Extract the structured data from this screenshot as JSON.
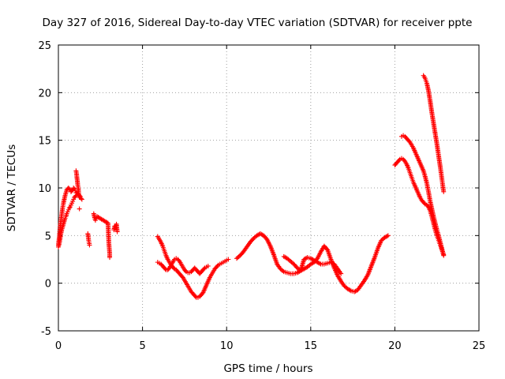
{
  "chart_data": {
    "type": "scatter",
    "title": "Day 327 of 2016, Sidereal Day-to-day VTEC variation (SDTVAR) for receiver ppte",
    "xlabel": "GPS time / hours",
    "ylabel": "SDTVAR / TECUs",
    "xlim": [
      0,
      25
    ],
    "ylim": [
      -5,
      25
    ],
    "x_ticks": [
      "0",
      "5",
      "10",
      "15",
      "20",
      "25"
    ],
    "y_ticks": [
      "-5",
      "0",
      "5",
      "10",
      "15",
      "20",
      "25"
    ],
    "grid": true,
    "marker": "plus",
    "colors": {
      "series": "#ff0000",
      "grid": "#a0a0a0",
      "axis": "#000000"
    },
    "series": [
      {
        "x": [
          0.0,
          0.05,
          0.1,
          0.15,
          0.2,
          0.25,
          0.3,
          0.35,
          0.4,
          0.45,
          0.5,
          0.55,
          0.6,
          0.65,
          0.7,
          0.75,
          0.8,
          0.85,
          0.9,
          0.95,
          1.0,
          1.05,
          1.1,
          1.15,
          1.2,
          1.25,
          1.3,
          1.35,
          1.4
        ],
        "y": [
          4.0,
          4.8,
          5.8,
          6.6,
          7.2,
          7.9,
          8.4,
          8.8,
          9.2,
          9.5,
          9.8,
          9.9,
          10.0,
          9.9,
          9.8,
          9.6,
          9.7,
          9.8,
          10.0,
          9.9,
          9.7,
          9.5,
          9.5,
          9.4,
          9.3,
          9.2,
          9.1,
          8.9,
          8.8
        ]
      },
      {
        "x": [
          0.0,
          0.05,
          0.1,
          0.15,
          0.2,
          0.25,
          0.3,
          0.35,
          0.4,
          0.45,
          0.5,
          0.55,
          0.6,
          0.65,
          0.7,
          0.75,
          0.8,
          0.85,
          0.9,
          0.95,
          1.0,
          1.05
        ],
        "y": [
          3.8,
          4.1,
          4.6,
          5.2,
          5.6,
          5.9,
          6.2,
          6.5,
          6.8,
          7.0,
          7.3,
          7.5,
          7.7,
          7.9,
          8.0,
          8.2,
          8.4,
          8.6,
          8.8,
          9.0,
          9.1,
          9.2
        ]
      },
      {
        "x": [
          1.05,
          1.08,
          1.1,
          1.13,
          1.15,
          1.18,
          1.2,
          1.22,
          1.25
        ],
        "y": [
          11.8,
          11.5,
          11.1,
          10.7,
          10.3,
          10.0,
          9.6,
          9.3,
          9.0
        ]
      },
      {
        "x": [
          1.25,
          1.75,
          1.8,
          1.85,
          2.1,
          2.15,
          2.2,
          2.25,
          2.3,
          2.95,
          3.0,
          3.05,
          3.05,
          3.3,
          3.35,
          3.4,
          3.45,
          3.5
        ],
        "y": [
          7.8,
          5.2,
          4.5,
          4.0,
          7.3,
          6.9,
          6.6,
          6.8,
          7.0,
          6.3,
          4.2,
          3.1,
          2.7,
          5.6,
          6.0,
          5.8,
          6.2,
          5.4
        ]
      },
      {
        "x": [
          5.9,
          6.0,
          6.1,
          6.2,
          6.3,
          6.4,
          6.5,
          6.6,
          6.7,
          6.8,
          6.9,
          7.0,
          7.1,
          7.2,
          7.3,
          7.4,
          7.5,
          7.6,
          7.7,
          7.8,
          7.9,
          8.0,
          8.1,
          8.2,
          8.3,
          8.4,
          8.5,
          8.6,
          8.7,
          8.8,
          8.9,
          9.0,
          9.1,
          9.2,
          9.3,
          9.4,
          9.5,
          9.6,
          9.7,
          9.8,
          9.9,
          10.0,
          10.1
        ],
        "y": [
          4.9,
          4.6,
          4.3,
          3.9,
          3.4,
          2.9,
          2.5,
          2.2,
          1.9,
          1.7,
          1.5,
          1.4,
          1.2,
          1.0,
          0.8,
          0.6,
          0.3,
          0.0,
          -0.3,
          -0.6,
          -0.9,
          -1.1,
          -1.3,
          -1.5,
          -1.5,
          -1.4,
          -1.2,
          -1.0,
          -0.6,
          -0.2,
          0.2,
          0.6,
          0.9,
          1.2,
          1.5,
          1.7,
          1.9,
          2.0,
          2.1,
          2.2,
          2.3,
          2.4,
          2.5
        ]
      },
      {
        "x": [
          5.9,
          6.0,
          6.1,
          6.2,
          6.3,
          6.4,
          6.5,
          6.6,
          6.7,
          6.8,
          6.9,
          7.0,
          7.1,
          7.2,
          7.3,
          7.4,
          7.5,
          7.6,
          7.7,
          7.8,
          7.9,
          8.0,
          8.1,
          8.2,
          8.3,
          8.4,
          8.5,
          8.6,
          8.7,
          8.8,
          8.9
        ],
        "y": [
          2.2,
          2.1,
          2.0,
          1.8,
          1.6,
          1.4,
          1.4,
          1.6,
          1.9,
          2.2,
          2.5,
          2.6,
          2.5,
          2.3,
          2.0,
          1.7,
          1.4,
          1.2,
          1.1,
          1.1,
          1.2,
          1.4,
          1.6,
          1.4,
          1.2,
          1.0,
          1.2,
          1.4,
          1.6,
          1.7,
          1.8
        ]
      },
      {
        "x": [
          10.6,
          10.8,
          11.0,
          11.2,
          11.4,
          11.6,
          11.8,
          12.0,
          12.2,
          12.4,
          12.6,
          12.8,
          13.0,
          13.2,
          13.4,
          13.6,
          13.8,
          14.0,
          14.2,
          14.4,
          14.6,
          14.8,
          15.0,
          15.2,
          15.4,
          15.6,
          15.8,
          16.0,
          16.2,
          16.4,
          16.6,
          16.8,
          17.0,
          17.2,
          17.4,
          17.6,
          17.8,
          18.0,
          18.2,
          18.4,
          18.6,
          18.8,
          19.0,
          19.2,
          19.4,
          19.6
        ],
        "y": [
          2.6,
          2.9,
          3.3,
          3.8,
          4.3,
          4.7,
          5.0,
          5.2,
          5.0,
          4.6,
          3.9,
          3.0,
          2.0,
          1.5,
          1.2,
          1.1,
          1.0,
          1.0,
          1.1,
          1.3,
          1.5,
          1.7,
          2.0,
          2.2,
          2.6,
          3.3,
          3.9,
          3.5,
          2.5,
          1.6,
          0.8,
          0.2,
          -0.3,
          -0.6,
          -0.8,
          -0.9,
          -0.7,
          -0.2,
          0.3,
          0.9,
          1.8,
          2.7,
          3.7,
          4.5,
          4.8,
          5.0
        ]
      },
      {
        "x": [
          13.4,
          13.6,
          13.8,
          14.0,
          14.2,
          14.4,
          14.6,
          14.8,
          15.0,
          15.2,
          15.4,
          15.6,
          15.8,
          16.0,
          16.2,
          16.4,
          16.6,
          16.8
        ],
        "y": [
          2.8,
          2.6,
          2.3,
          2.0,
          1.6,
          1.3,
          2.5,
          2.7,
          2.6,
          2.4,
          2.2,
          2.0,
          2.0,
          2.1,
          2.2,
          2.0,
          1.5,
          1.0
        ]
      },
      {
        "x": [
          20.0,
          20.1,
          20.2,
          20.3,
          20.4,
          20.5,
          20.6,
          20.7,
          20.8,
          20.9,
          21.0,
          21.1,
          21.2,
          21.3,
          21.4,
          21.5,
          21.6,
          21.7,
          21.8,
          21.9,
          22.0,
          22.1,
          22.2,
          22.3,
          22.4,
          22.5,
          22.6,
          22.7,
          22.8,
          22.9
        ],
        "y": [
          12.4,
          12.6,
          12.8,
          13.0,
          13.1,
          13.0,
          12.8,
          12.5,
          12.1,
          11.6,
          11.1,
          10.6,
          10.2,
          9.8,
          9.4,
          9.0,
          8.7,
          8.5,
          8.3,
          8.2,
          8.0,
          7.6,
          7.0,
          6.3,
          5.6,
          5.0,
          4.5,
          4.0,
          3.5,
          3.0
        ]
      },
      {
        "x": [
          20.4,
          20.5,
          20.6,
          20.7,
          20.8,
          20.9,
          21.0,
          21.1,
          21.2,
          21.3,
          21.4,
          21.5,
          21.6,
          21.7,
          21.8,
          21.9,
          22.0,
          22.1,
          22.2,
          22.3,
          22.4,
          22.5,
          22.6,
          22.7,
          22.8,
          22.9
        ],
        "y": [
          15.4,
          15.5,
          15.4,
          15.2,
          15.0,
          14.8,
          14.5,
          14.2,
          13.8,
          13.4,
          13.0,
          12.6,
          12.2,
          11.8,
          11.2,
          10.5,
          9.6,
          8.6,
          7.8,
          7.0,
          6.3,
          5.6,
          5.0,
          4.3,
          3.6,
          2.9
        ]
      },
      {
        "x": [
          21.7,
          21.8,
          21.9,
          22.0,
          22.1,
          22.2,
          22.3,
          22.4,
          22.5,
          22.6,
          22.7,
          22.8,
          22.9
        ],
        "y": [
          21.8,
          21.5,
          21.0,
          20.2,
          19.1,
          17.9,
          16.8,
          15.7,
          14.6,
          13.4,
          12.2,
          10.9,
          9.6
        ]
      }
    ]
  }
}
